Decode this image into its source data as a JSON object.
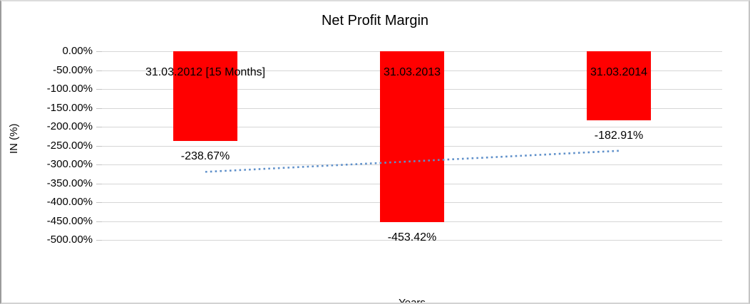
{
  "chart_data": {
    "type": "bar",
    "title": "Net Profit Margin",
    "xlabel": "Years",
    "ylabel": "IN (%)",
    "categories": [
      "31.03.2012 [15 Months]",
      "31.03.2013",
      "31.03.2014"
    ],
    "values": [
      -238.67,
      -453.42,
      -182.91
    ],
    "value_labels": [
      "-238.67%",
      "-453.42%",
      "-182.91%"
    ],
    "y_ticks": [
      "0.00%",
      "-50.00%",
      "-100.00%",
      "-150.00%",
      "-200.00%",
      "-250.00%",
      "-300.00%",
      "-350.00%",
      "-400.00%",
      "-450.00%",
      "-500.00%"
    ],
    "ylim": [
      -500,
      0
    ],
    "grid": true,
    "legend": "none",
    "bar_color": "#ff0000",
    "gridline_color": "#d6d6d6",
    "trendline": {
      "type": "linear",
      "style": "dotted",
      "color": "#5f90ca",
      "start_value": -319.6,
      "end_value": -263.8
    }
  }
}
